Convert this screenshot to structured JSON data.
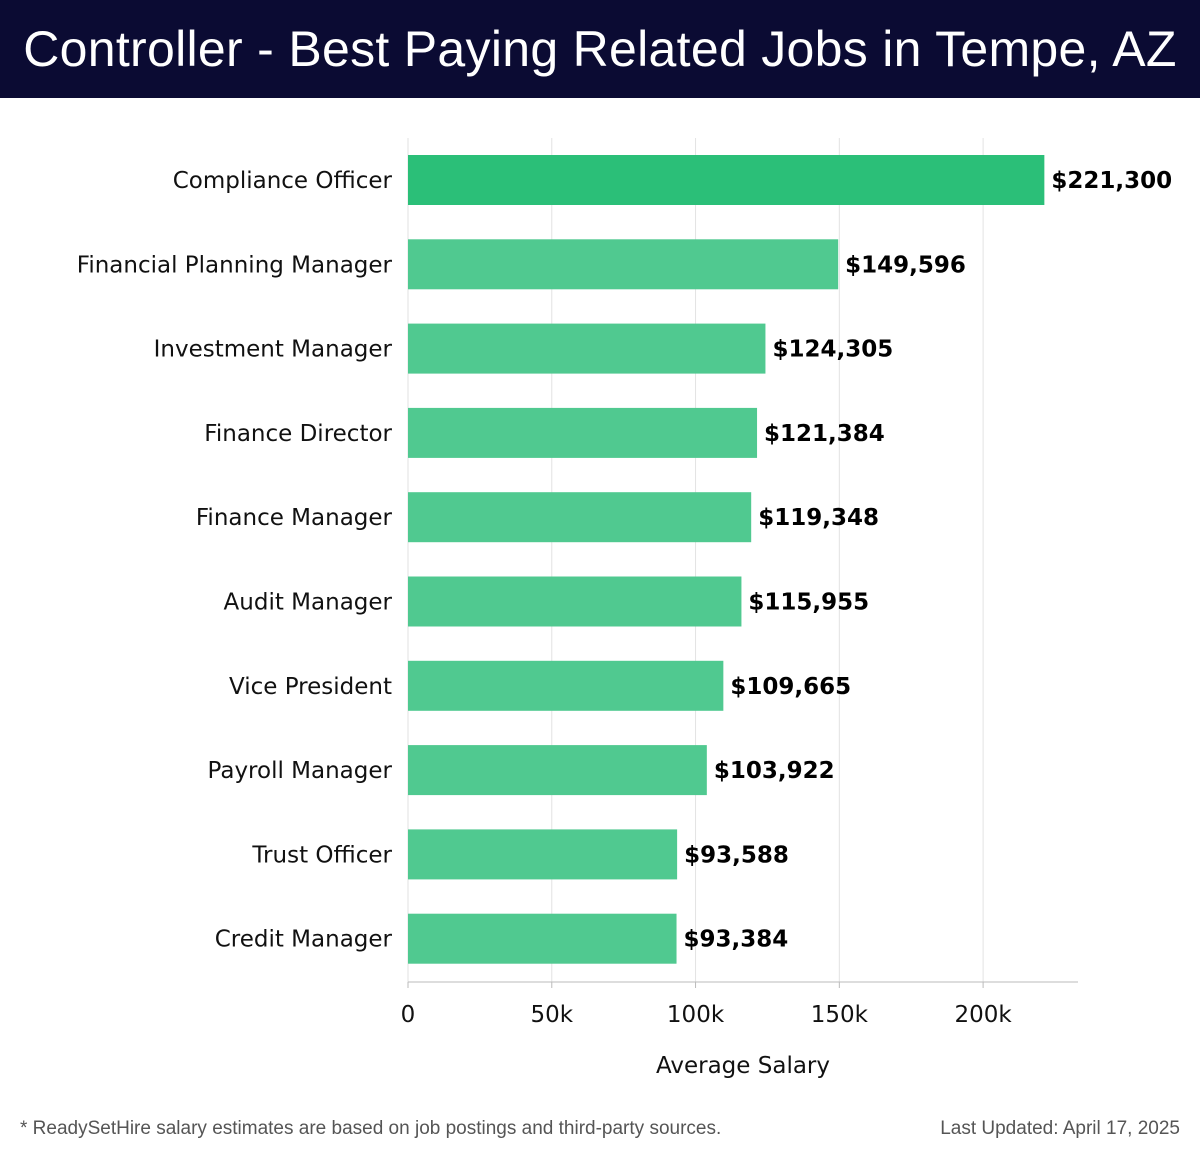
{
  "header": {
    "title": "Controller - Best Paying Related Jobs in Tempe, AZ"
  },
  "footer": {
    "note": "* ReadySetHire salary estimates are based on job postings and third-party sources.",
    "updated": "Last Updated: April 17, 2025"
  },
  "chart_data": {
    "type": "bar",
    "orientation": "horizontal",
    "title": "Controller - Best Paying Related Jobs in Tempe, AZ",
    "xlabel": "Average Salary",
    "ylabel": "",
    "xlim": [
      0,
      233000
    ],
    "xticks": [
      0,
      50000,
      100000,
      150000,
      200000
    ],
    "xtick_labels": [
      "0",
      "50k",
      "100k",
      "150k",
      "200k"
    ],
    "grid": "vertical",
    "categories": [
      "Compliance Officer",
      "Financial Planning Manager",
      "Investment Manager",
      "Finance Director",
      "Finance Manager",
      "Audit Manager",
      "Vice President",
      "Payroll Manager",
      "Trust Officer",
      "Credit Manager"
    ],
    "values": [
      221300,
      149596,
      124305,
      121384,
      119348,
      115955,
      109665,
      103922,
      93588,
      93384
    ],
    "value_labels": [
      "$221,300",
      "$149,596",
      "$124,305",
      "$121,384",
      "$119,348",
      "$115,955",
      "$109,665",
      "$103,922",
      "$93,588",
      "$93,384"
    ],
    "colors": {
      "top_bar": "#2bbf78",
      "bar": "#50c990",
      "grid": "#e2e2e2",
      "axis": "#bbbbbb"
    }
  }
}
